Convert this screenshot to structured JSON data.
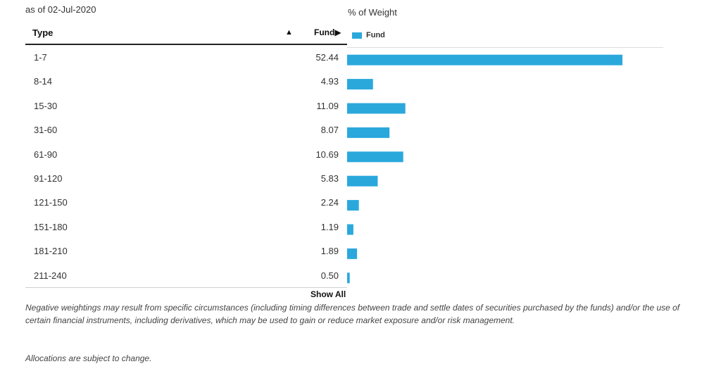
{
  "as_of": "as of 02-Jul-2020",
  "table": {
    "header_type": "Type",
    "sort_indicator": "▲",
    "header_fund": "Fund▶"
  },
  "chart_data": {
    "type": "bar",
    "orientation": "horizontal",
    "title": "% of Weight",
    "categories": [
      "1-7",
      "8-14",
      "15-30",
      "31-60",
      "61-90",
      "91-120",
      "121-150",
      "151-180",
      "181-210",
      "211-240"
    ],
    "value_labels": [
      "52.44",
      "4.93",
      "11.09",
      "8.07",
      "10.69",
      "5.83",
      "2.24",
      "1.19",
      "1.89",
      "0.50"
    ],
    "series": [
      {
        "name": "Fund",
        "values": [
          52.44,
          4.93,
          11.09,
          8.07,
          10.69,
          5.83,
          2.24,
          1.19,
          1.89,
          0.5
        ],
        "color": "#2aa8dc"
      }
    ],
    "legend": "top-left",
    "grid": false,
    "xlim": [
      0,
      60
    ]
  },
  "show_all_label": "Show All",
  "disclaimer": "Negative weightings may result from specific circumstances (including timing differences between trade and settle dates of securities purchased by the funds) and/or the use of certain financial instruments, including derivatives, which may be used to gain or reduce market exposure and/or risk management.",
  "allocations_note": "Allocations are subject to change."
}
